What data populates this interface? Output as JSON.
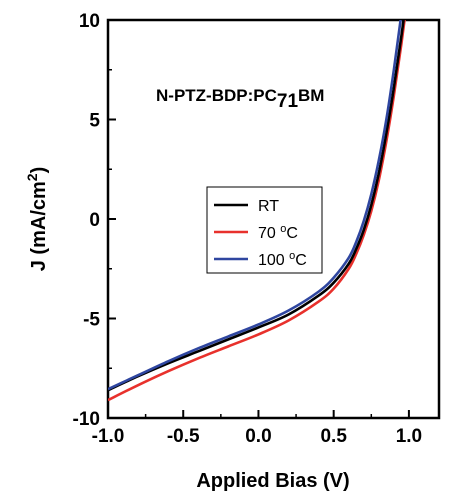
{
  "chart_data": {
    "type": "line",
    "xlabel": "Applied Bias (V)",
    "ylabel_main": "J (mA/cm",
    "ylabel_sup": "2",
    "ylabel_close": ")",
    "annotation": {
      "prefix": "N-PTZ-BDP:PC",
      "sub": "71",
      "suffix": "BM"
    },
    "xlim": [
      -1.0,
      1.2
    ],
    "ylim": [
      -10,
      10
    ],
    "xticks": [
      -1.0,
      -0.5,
      0.0,
      0.5,
      1.0
    ],
    "xtick_labels": [
      "-1.0",
      "-0.5",
      "0.0",
      "0.5",
      "1.0"
    ],
    "yticks": [
      -10,
      -5,
      0,
      5,
      10
    ],
    "ytick_labels": [
      "-10",
      "-5",
      "0",
      "5",
      "10"
    ],
    "legend_position": "center",
    "series": [
      {
        "name": "RT",
        "color": "#000000",
        "x": [
          -1.0,
          -0.8,
          -0.6,
          -0.4,
          -0.2,
          0.0,
          0.2,
          0.4,
          0.5,
          0.6,
          0.65,
          0.7,
          0.75,
          0.8,
          0.85,
          0.9,
          0.95,
          1.0
        ],
        "y": [
          -8.6,
          -7.9,
          -7.25,
          -6.65,
          -6.05,
          -5.45,
          -4.8,
          -3.85,
          -3.2,
          -2.25,
          -1.5,
          -0.55,
          0.7,
          2.3,
          4.3,
          6.6,
          9.2,
          12.0
        ]
      },
      {
        "name": "70 ",
        "name_sup": "o",
        "name_unit": "C",
        "color": "#e8312c",
        "x": [
          -1.0,
          -0.8,
          -0.6,
          -0.4,
          -0.2,
          0.0,
          0.2,
          0.4,
          0.5,
          0.6,
          0.65,
          0.7,
          0.75,
          0.8,
          0.85,
          0.9,
          0.95,
          1.0
        ],
        "y": [
          -9.1,
          -8.35,
          -7.65,
          -7.0,
          -6.4,
          -5.8,
          -5.1,
          -4.15,
          -3.5,
          -2.5,
          -1.75,
          -0.8,
          0.4,
          1.95,
          3.9,
          6.2,
          8.8,
          11.7
        ]
      },
      {
        "name": "100 ",
        "name_sup": "o",
        "name_unit": "C",
        "color": "#2f46a0",
        "x": [
          -1.0,
          -0.8,
          -0.6,
          -0.4,
          -0.2,
          0.0,
          0.2,
          0.4,
          0.5,
          0.6,
          0.65,
          0.7,
          0.75,
          0.8,
          0.85,
          0.9,
          0.95,
          1.0
        ],
        "y": [
          -8.55,
          -7.85,
          -7.15,
          -6.5,
          -5.9,
          -5.3,
          -4.6,
          -3.65,
          -2.95,
          -1.95,
          -1.15,
          -0.1,
          1.25,
          2.95,
          5.0,
          7.5,
          10.3,
          13.0
        ]
      }
    ]
  }
}
